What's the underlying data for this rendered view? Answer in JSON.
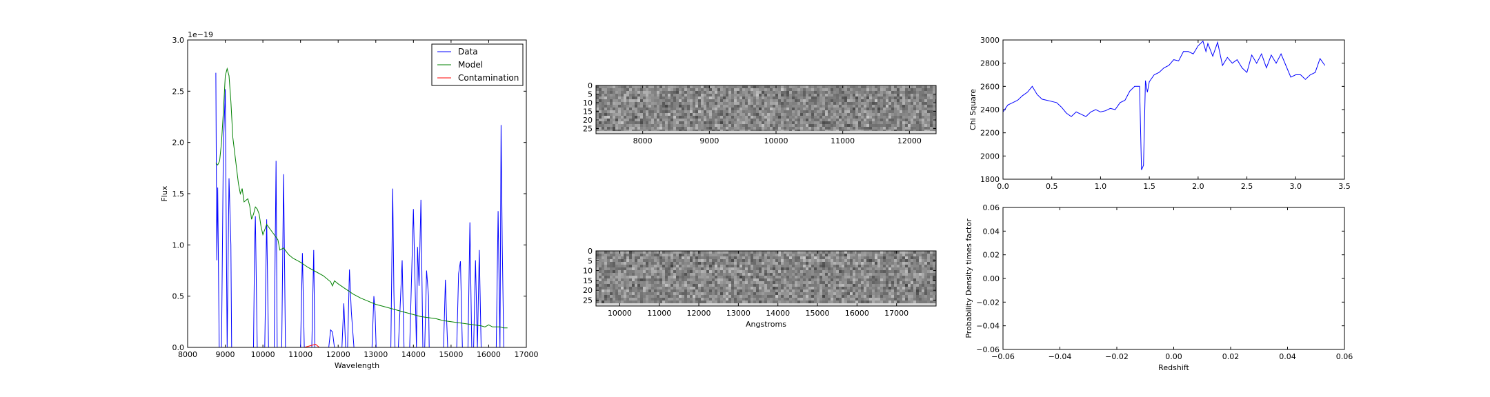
{
  "chart_data": [
    {
      "type": "line",
      "xlabel": "Wavelength",
      "ylabel": "Flux",
      "offset_label": "1e−19",
      "xlim": [
        8000,
        17000
      ],
      "ylim": [
        0,
        3.0
      ],
      "xticks": [
        8000,
        9000,
        10000,
        11000,
        12000,
        13000,
        14000,
        15000,
        16000,
        17000
      ],
      "yticks": [
        0.0,
        0.5,
        1.0,
        1.5,
        2.0,
        2.5,
        3.0
      ],
      "xtick_labels": [
        "8000",
        "9000",
        "10000",
        "11000",
        "12000",
        "13000",
        "14000",
        "15000",
        "16000",
        "17000"
      ],
      "ytick_labels": [
        "0.0",
        "0.5",
        "1.0",
        "1.5",
        "2.0",
        "2.5",
        "3.0"
      ],
      "legend_position": "top-right",
      "series": [
        {
          "name": "Data",
          "color": "#0000ff",
          "x": [
            8750,
            8775,
            8800,
            8840,
            8860,
            8900,
            8950,
            9000,
            9020,
            9050,
            9100,
            9150,
            9170,
            9200,
            9250,
            9300,
            9700,
            9750,
            9780,
            9800,
            9850,
            9900,
            9950,
            10000,
            10050,
            10100,
            10150,
            10200,
            10300,
            10350,
            10380,
            10410,
            10450,
            10500,
            10550,
            10600,
            10630,
            10660,
            10700,
            10750,
            10800,
            10900,
            11000,
            11050,
            11100,
            11200,
            11300,
            11350,
            11380,
            11420,
            11460,
            11500,
            11750,
            11800,
            11850,
            11900,
            12000,
            12100,
            12150,
            12200,
            12250,
            12300,
            12350,
            12420,
            12480,
            12530,
            12600,
            12900,
            12950,
            12980,
            13010,
            13050,
            13100,
            13400,
            13450,
            13480,
            13510,
            13550,
            13600,
            13700,
            13750,
            13800,
            13850,
            13900,
            14000,
            14050,
            14080,
            14110,
            14150,
            14200,
            14250,
            14300,
            14350,
            14400,
            14420,
            14450,
            14480,
            14500,
            14550,
            14600,
            14800,
            14850,
            14880,
            14910,
            14950,
            15000,
            15150,
            15200,
            15250,
            15300,
            15350,
            15450,
            15500,
            15550,
            15600,
            15650,
            15700,
            15750,
            15800,
            16000,
            16100,
            16150,
            16200,
            16250,
            16300,
            16330,
            16360,
            16400
          ],
          "y": [
            2.68,
            0.85,
            1.56,
            0.0,
            0.0,
            0.0,
            1.95,
            2.52,
            1.5,
            0.0,
            1.65,
            1.0,
            0.0,
            0.0,
            0.0,
            0.0,
            0.0,
            0.0,
            1.0,
            1.28,
            0.0,
            0.0,
            0.0,
            0.0,
            0.0,
            1.25,
            0.0,
            0.0,
            0.0,
            1.82,
            0.0,
            0.0,
            0.0,
            0.0,
            1.69,
            0.0,
            0.0,
            0.0,
            0.0,
            0.0,
            0.0,
            0.0,
            0.0,
            0.92,
            0.0,
            0.0,
            0.0,
            0.95,
            0.0,
            0.0,
            0.0,
            0.0,
            0.0,
            0.17,
            0.15,
            0.0,
            0.0,
            0.0,
            0.43,
            0.0,
            0.0,
            0.76,
            0.35,
            0.0,
            0.0,
            0.0,
            0.0,
            0.0,
            0.5,
            0.35,
            0.0,
            0.0,
            0.0,
            0.0,
            1.55,
            0.55,
            0.0,
            0.0,
            0.0,
            0.85,
            0.0,
            0.0,
            0.0,
            0.0,
            1.35,
            0.5,
            0.0,
            0.98,
            0.6,
            1.44,
            0.0,
            0.0,
            0.75,
            0.5,
            0.0,
            0.0,
            0.0,
            0.0,
            0.0,
            0.0,
            0.0,
            0.66,
            0.3,
            0.0,
            0.0,
            0.0,
            0.0,
            0.72,
            0.84,
            0.0,
            0.0,
            0.0,
            1.22,
            0.0,
            0.0,
            0.85,
            0.0,
            0.95,
            0.0,
            0.0,
            0.0,
            0.0,
            0.0,
            1.33,
            0.0,
            2.17,
            1.0,
            0.0
          ]
        },
        {
          "name": "Model",
          "color": "#008000",
          "x": [
            8750,
            8800,
            8850,
            8900,
            8950,
            9000,
            9050,
            9100,
            9150,
            9200,
            9300,
            9350,
            9400,
            9450,
            9500,
            9600,
            9650,
            9700,
            9750,
            9800,
            9850,
            9900,
            9950,
            10000,
            10100,
            10200,
            10300,
            10400,
            10450,
            10550,
            10650,
            10700,
            10800,
            10900,
            11000,
            11200,
            11400,
            11600,
            11800,
            11850,
            11900,
            12000,
            12200,
            12400,
            12600,
            12800,
            13000,
            13200,
            13400,
            13600,
            13800,
            14000,
            14200,
            14400,
            14600,
            14800,
            15000,
            15200,
            15400,
            15600,
            15800,
            15900,
            16000,
            16100,
            16200,
            16300,
            16400,
            16500
          ],
          "y": [
            1.8,
            1.78,
            1.82,
            2.0,
            2.3,
            2.65,
            2.72,
            2.65,
            2.4,
            2.05,
            1.75,
            1.6,
            1.5,
            1.55,
            1.42,
            1.45,
            1.38,
            1.25,
            1.3,
            1.37,
            1.35,
            1.3,
            1.18,
            1.1,
            1.2,
            1.15,
            1.1,
            1.05,
            0.95,
            0.97,
            0.92,
            0.9,
            0.87,
            0.85,
            0.83,
            0.78,
            0.74,
            0.7,
            0.64,
            0.6,
            0.65,
            0.62,
            0.57,
            0.52,
            0.48,
            0.45,
            0.42,
            0.4,
            0.38,
            0.36,
            0.34,
            0.32,
            0.3,
            0.29,
            0.28,
            0.26,
            0.25,
            0.24,
            0.23,
            0.22,
            0.21,
            0.2,
            0.22,
            0.2,
            0.2,
            0.2,
            0.19,
            0.19
          ]
        },
        {
          "name": "Contamination",
          "color": "#ff0000",
          "x": [
            8750,
            11100,
            11200,
            11300,
            11400,
            11500,
            16500
          ],
          "y": [
            0.0,
            0.0,
            0.01,
            0.02,
            0.03,
            0.0,
            0.0
          ]
        }
      ]
    },
    {
      "type": "heatmap",
      "xlim": [
        7300,
        12400
      ],
      "ylim": [
        0,
        28
      ],
      "xticks": [
        8000,
        9000,
        10000,
        11000,
        12000
      ],
      "yticks": [
        0,
        5,
        10,
        15,
        20,
        25
      ],
      "xtick_labels": [
        "8000",
        "9000",
        "10000",
        "11000",
        "12000"
      ],
      "ytick_labels": [
        "0",
        "5",
        "10",
        "15",
        "20",
        "25"
      ],
      "colormap": "gray"
    },
    {
      "type": "heatmap",
      "xlabel": "Angstroms",
      "xlim": [
        9400,
        18000
      ],
      "ylim": [
        0,
        28
      ],
      "xticks": [
        10000,
        11000,
        12000,
        13000,
        14000,
        15000,
        16000,
        17000
      ],
      "yticks": [
        0,
        5,
        10,
        15,
        20,
        25
      ],
      "xtick_labels": [
        "10000",
        "11000",
        "12000",
        "13000",
        "14000",
        "15000",
        "16000",
        "17000"
      ],
      "ytick_labels": [
        "0",
        "5",
        "10",
        "15",
        "20",
        "25"
      ],
      "colormap": "gray"
    },
    {
      "type": "line",
      "ylabel": "Chi Square",
      "xlim": [
        0.0,
        3.5
      ],
      "ylim": [
        1800,
        3000
      ],
      "xticks": [
        0.0,
        0.5,
        1.0,
        1.5,
        2.0,
        2.5,
        3.0,
        3.5
      ],
      "yticks": [
        1800,
        2000,
        2200,
        2400,
        2600,
        2800,
        3000
      ],
      "xtick_labels": [
        "0.0",
        "0.5",
        "1.0",
        "1.5",
        "2.0",
        "2.5",
        "3.0",
        "3.5"
      ],
      "ytick_labels": [
        "1800",
        "2000",
        "2200",
        "2400",
        "2600",
        "2800",
        "3000"
      ],
      "series": [
        {
          "color": "#0000ff",
          "x": [
            0.0,
            0.05,
            0.1,
            0.15,
            0.2,
            0.25,
            0.3,
            0.35,
            0.4,
            0.45,
            0.5,
            0.55,
            0.6,
            0.65,
            0.7,
            0.75,
            0.8,
            0.85,
            0.9,
            0.95,
            1.0,
            1.05,
            1.1,
            1.15,
            1.2,
            1.25,
            1.3,
            1.35,
            1.4,
            1.42,
            1.44,
            1.46,
            1.48,
            1.5,
            1.55,
            1.6,
            1.65,
            1.7,
            1.75,
            1.8,
            1.85,
            1.9,
            1.95,
            2.0,
            2.05,
            2.08,
            2.1,
            2.15,
            2.2,
            2.25,
            2.3,
            2.35,
            2.4,
            2.45,
            2.5,
            2.55,
            2.6,
            2.65,
            2.7,
            2.75,
            2.8,
            2.85,
            2.9,
            2.95,
            3.0,
            3.05,
            3.1,
            3.15,
            3.2,
            3.25,
            3.3
          ],
          "y": [
            2380,
            2440,
            2460,
            2480,
            2520,
            2550,
            2600,
            2530,
            2490,
            2480,
            2470,
            2460,
            2420,
            2370,
            2340,
            2380,
            2360,
            2340,
            2380,
            2400,
            2380,
            2390,
            2410,
            2400,
            2460,
            2480,
            2560,
            2600,
            2600,
            1880,
            1920,
            2650,
            2550,
            2640,
            2700,
            2720,
            2760,
            2780,
            2830,
            2820,
            2900,
            2900,
            2880,
            2950,
            2990,
            2900,
            2970,
            2860,
            2980,
            2780,
            2850,
            2800,
            2830,
            2760,
            2720,
            2870,
            2800,
            2880,
            2760,
            2870,
            2800,
            2880,
            2780,
            2680,
            2700,
            2700,
            2660,
            2700,
            2720,
            2840,
            2780
          ]
        }
      ]
    },
    {
      "type": "line",
      "xlabel": "Redshift",
      "ylabel": "Probability Density times factor",
      "xlim": [
        -0.06,
        0.06
      ],
      "ylim": [
        -0.06,
        0.06
      ],
      "xticks": [
        -0.06,
        -0.04,
        -0.02,
        0.0,
        0.02,
        0.04,
        0.06
      ],
      "yticks": [
        -0.06,
        -0.04,
        -0.02,
        0.0,
        0.02,
        0.04,
        0.06
      ],
      "xtick_labels": [
        "−0.06",
        "−0.04",
        "−0.02",
        "0.00",
        "0.02",
        "0.04",
        "0.06"
      ],
      "ytick_labels": [
        "−0.06",
        "−0.04",
        "−0.02",
        "0.00",
        "0.02",
        "0.04",
        "0.06"
      ],
      "series": []
    }
  ]
}
